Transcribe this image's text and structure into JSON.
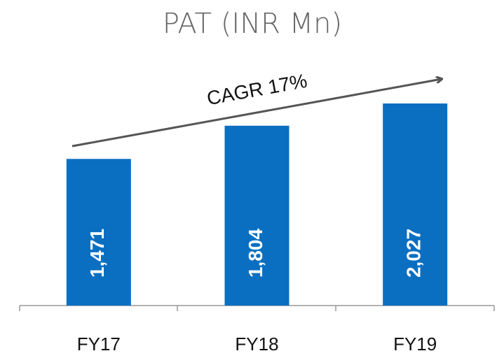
{
  "chart_data": {
    "type": "bar",
    "title": "PAT (INR Mn)",
    "categories": [
      "FY17",
      "FY18",
      "FY19"
    ],
    "values": [
      1471,
      1804,
      2027
    ],
    "value_labels": [
      "1,471",
      "1,804",
      "2,027"
    ],
    "color": "#0b6fc1",
    "annotation": "CAGR 17%"
  }
}
